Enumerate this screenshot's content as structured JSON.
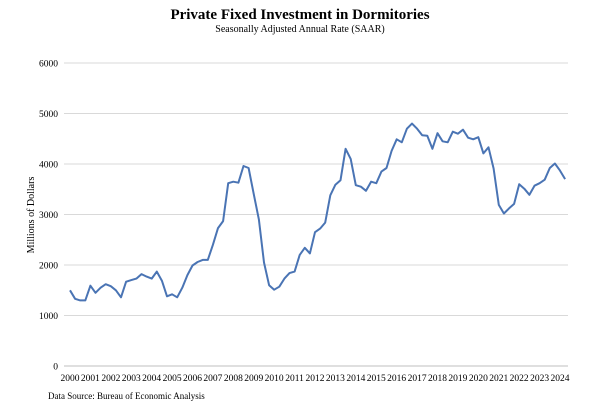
{
  "chart_data": {
    "type": "line",
    "title": "Private Fixed Investment in Dormitories",
    "subtitle": "Seasonally Adjusted Annual Rate (SAAR)",
    "xlabel": "",
    "ylabel": "Millions of Dollars",
    "source": "Data Source: Bureau of Economic Analysis",
    "ylim": [
      0,
      6000
    ],
    "y_ticks": [
      0,
      1000,
      2000,
      3000,
      4000,
      5000,
      6000
    ],
    "x_tick_labels": [
      "2000",
      "2001",
      "2002",
      "2003",
      "2004",
      "2005",
      "2006",
      "2007",
      "2008",
      "2009",
      "2010",
      "2011",
      "2012",
      "2013",
      "2014",
      "2015",
      "2016",
      "2017",
      "2018",
      "2019",
      "2020",
      "2021",
      "2022",
      "2023",
      "2024"
    ],
    "grid": true,
    "line_color": "#4a74b4",
    "series": [
      {
        "name": "",
        "frequency": "quarterly",
        "start": "2000-Q1",
        "values": [
          1500,
          1330,
          1300,
          1300,
          1590,
          1450,
          1550,
          1620,
          1580,
          1500,
          1360,
          1670,
          1700,
          1730,
          1820,
          1770,
          1730,
          1870,
          1690,
          1380,
          1420,
          1360,
          1550,
          1800,
          1990,
          2060,
          2100,
          2100,
          2400,
          2730,
          2870,
          3620,
          3650,
          3630,
          3960,
          3920,
          3400,
          2900,
          2050,
          1600,
          1510,
          1570,
          1730,
          1840,
          1870,
          2200,
          2340,
          2230,
          2650,
          2720,
          2840,
          3380,
          3590,
          3680,
          4300,
          4100,
          3580,
          3550,
          3470,
          3650,
          3620,
          3850,
          3920,
          4260,
          4490,
          4430,
          4700,
          4800,
          4700,
          4570,
          4560,
          4300,
          4610,
          4450,
          4430,
          4640,
          4600,
          4680,
          4520,
          4490,
          4530,
          4210,
          4330,
          3910,
          3190,
          3020,
          3120,
          3210,
          3600,
          3510,
          3390,
          3570,
          3620,
          3690,
          3920,
          4010,
          3870,
          3700
        ]
      }
    ]
  }
}
